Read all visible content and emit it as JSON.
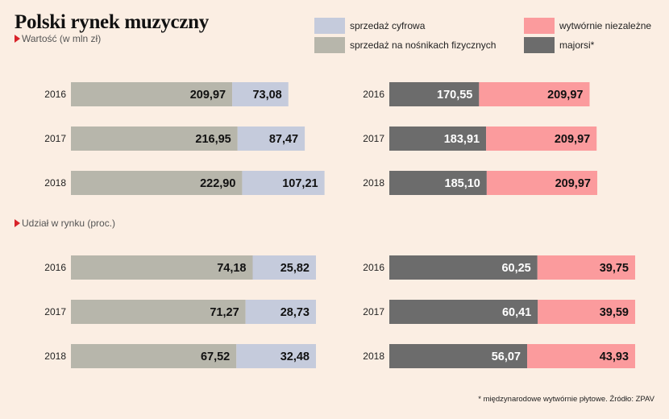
{
  "title": "Polski rynek muzyczny",
  "footnote": "* międzynarodowe wytwórnie płytowe. Źródło: ZPAV",
  "sections": [
    {
      "label": "Wartość (w mln zł)"
    },
    {
      "label": "Udział w rynku (proc.)"
    }
  ],
  "legend": [
    {
      "label": "sprzedaż cyfrowa",
      "color": "#c5cbdc"
    },
    {
      "label": "sprzedaż na nośnikach fizycznych",
      "color": "#b7b6ab"
    },
    {
      "label": "wytwórnie niezależne",
      "color": "#fb9b9d"
    },
    {
      "label": "majorsi*",
      "color": "#6c6c6c"
    }
  ],
  "colors": {
    "physical": "#b7b6ab",
    "digital": "#c5cbdc",
    "majors": "#6c6c6c",
    "independent": "#fb9b9d",
    "label_dark": "#111111",
    "label_light": "#ffffff"
  },
  "chart_data": [
    {
      "type": "bar",
      "stacked": true,
      "orientation": "horizontal",
      "categories": [
        "2016",
        "2017",
        "2018"
      ],
      "series": [
        {
          "name": "sprzedaż na nośnikach fizycznych",
          "values": [
            209.97,
            216.95,
            222.9
          ],
          "labels": [
            "209,97",
            "216,95",
            "222,90"
          ]
        },
        {
          "name": "sprzedaż cyfrowa",
          "values": [
            73.08,
            87.47,
            107.21
          ],
          "labels": [
            "73,08",
            "87,47",
            "107,21"
          ]
        }
      ]
    },
    {
      "type": "bar",
      "stacked": true,
      "orientation": "horizontal",
      "categories": [
        "2016",
        "2017",
        "2018"
      ],
      "series": [
        {
          "name": "majorsi*",
          "values": [
            170.55,
            183.91,
            185.1
          ],
          "labels": [
            "170,55",
            "183,91",
            "185,10"
          ]
        },
        {
          "name": "wytwórnie niezależne",
          "values": [
            209.97,
            209.97,
            209.97
          ],
          "labels": [
            "209,97",
            "209,97",
            "209,97"
          ]
        }
      ]
    },
    {
      "type": "bar",
      "stacked": true,
      "orientation": "horizontal",
      "categories": [
        "2016",
        "2017",
        "2018"
      ],
      "series": [
        {
          "name": "sprzedaż na nośnikach fizycznych",
          "values": [
            74.18,
            71.27,
            67.52
          ],
          "labels": [
            "74,18",
            "71,27",
            "67,52"
          ]
        },
        {
          "name": "sprzedaż cyfrowa",
          "values": [
            25.82,
            28.73,
            32.48
          ],
          "labels": [
            "25,82",
            "28,73",
            "32,48"
          ]
        }
      ]
    },
    {
      "type": "bar",
      "stacked": true,
      "orientation": "horizontal",
      "categories": [
        "2016",
        "2017",
        "2018"
      ],
      "series": [
        {
          "name": "majorsi*",
          "values": [
            60.25,
            60.41,
            56.07
          ],
          "labels": [
            "60,25",
            "60,41",
            "56,07"
          ]
        },
        {
          "name": "wytwórnie niezależne",
          "values": [
            39.75,
            39.59,
            43.93
          ],
          "labels": [
            "39,75",
            "39,59",
            "43,93"
          ]
        }
      ]
    }
  ]
}
